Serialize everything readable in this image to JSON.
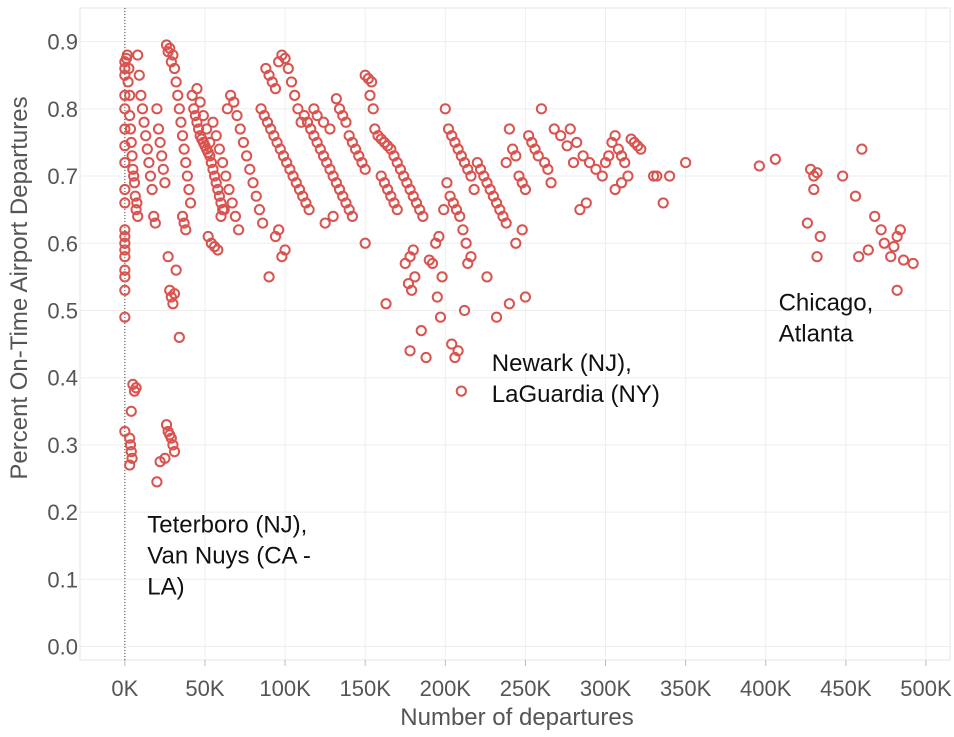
{
  "chart_data": {
    "type": "scatter",
    "xlabel": "Number of departures",
    "ylabel": "Percent On-Time Airport Departures",
    "xlim": [
      -28000,
      515000
    ],
    "ylim": [
      -0.02,
      0.95
    ],
    "x_ticks": [
      0,
      50000,
      100000,
      150000,
      200000,
      250000,
      300000,
      350000,
      400000,
      450000,
      500000
    ],
    "x_tick_labels": [
      "0K",
      "50K",
      "100K",
      "150K",
      "200K",
      "250K",
      "300K",
      "350K",
      "400K",
      "450K",
      "500K"
    ],
    "y_ticks": [
      0.0,
      0.1,
      0.2,
      0.3,
      0.4,
      0.5,
      0.6,
      0.7,
      0.8,
      0.9
    ],
    "y_tick_labels": [
      "0.0",
      "0.1",
      "0.2",
      "0.3",
      "0.4",
      "0.5",
      "0.6",
      "0.7",
      "0.8",
      "0.9"
    ],
    "grid": true,
    "marker_color": "#d9534f",
    "annotations": [
      {
        "lines": [
          "Teterboro (NJ),",
          "Van Nuys (CA -",
          "LA)"
        ],
        "x": 14000,
        "y": 0.17
      },
      {
        "lines": [
          "Newark (NJ),",
          "LaGuardia (NY)"
        ],
        "x": 229000,
        "y": 0.41
      },
      {
        "lines": [
          "Chicago,",
          "Atlanta"
        ],
        "x": 408000,
        "y": 0.5
      }
    ],
    "points": [
      [
        0,
        0.87
      ],
      [
        0,
        0.86
      ],
      [
        0,
        0.85
      ],
      [
        0,
        0.82
      ],
      [
        0,
        0.8
      ],
      [
        0,
        0.77
      ],
      [
        0,
        0.745
      ],
      [
        0,
        0.72
      ],
      [
        0,
        0.68
      ],
      [
        0,
        0.66
      ],
      [
        0,
        0.62
      ],
      [
        0,
        0.61
      ],
      [
        0,
        0.6
      ],
      [
        0,
        0.59
      ],
      [
        0,
        0.58
      ],
      [
        0,
        0.56
      ],
      [
        0,
        0.55
      ],
      [
        0,
        0.53
      ],
      [
        0,
        0.49
      ],
      [
        0,
        0.32
      ],
      [
        1000,
        0.875
      ],
      [
        1500,
        0.88
      ],
      [
        2000,
        0.84
      ],
      [
        2500,
        0.86
      ],
      [
        3000,
        0.82
      ],
      [
        3000,
        0.79
      ],
      [
        3500,
        0.77
      ],
      [
        4000,
        0.75
      ],
      [
        4500,
        0.73
      ],
      [
        5000,
        0.71
      ],
      [
        5500,
        0.7
      ],
      [
        6000,
        0.69
      ],
      [
        6500,
        0.67
      ],
      [
        7000,
        0.65
      ],
      [
        7500,
        0.66
      ],
      [
        8000,
        0.64
      ],
      [
        3000,
        0.31
      ],
      [
        3500,
        0.3
      ],
      [
        4000,
        0.29
      ],
      [
        4500,
        0.28
      ],
      [
        3000,
        0.27
      ],
      [
        4000,
        0.35
      ],
      [
        5000,
        0.39
      ],
      [
        6000,
        0.38
      ],
      [
        7000,
        0.385
      ],
      [
        8000,
        0.88
      ],
      [
        9000,
        0.85
      ],
      [
        10000,
        0.82
      ],
      [
        11000,
        0.8
      ],
      [
        12000,
        0.78
      ],
      [
        13000,
        0.76
      ],
      [
        14000,
        0.74
      ],
      [
        15000,
        0.72
      ],
      [
        16000,
        0.7
      ],
      [
        17000,
        0.68
      ],
      [
        18000,
        0.64
      ],
      [
        19000,
        0.63
      ],
      [
        20000,
        0.8
      ],
      [
        21000,
        0.77
      ],
      [
        22000,
        0.75
      ],
      [
        23000,
        0.73
      ],
      [
        24000,
        0.71
      ],
      [
        25000,
        0.69
      ],
      [
        26000,
        0.895
      ],
      [
        27000,
        0.885
      ],
      [
        28000,
        0.89
      ],
      [
        29000,
        0.87
      ],
      [
        30000,
        0.88
      ],
      [
        31000,
        0.86
      ],
      [
        32000,
        0.84
      ],
      [
        33000,
        0.82
      ],
      [
        34000,
        0.8
      ],
      [
        35000,
        0.78
      ],
      [
        36000,
        0.76
      ],
      [
        37000,
        0.74
      ],
      [
        38000,
        0.72
      ],
      [
        39000,
        0.7
      ],
      [
        40000,
        0.68
      ],
      [
        41000,
        0.66
      ],
      [
        27000,
        0.58
      ],
      [
        28000,
        0.53
      ],
      [
        29000,
        0.52
      ],
      [
        30000,
        0.51
      ],
      [
        31000,
        0.525
      ],
      [
        32000,
        0.56
      ],
      [
        34000,
        0.46
      ],
      [
        26000,
        0.33
      ],
      [
        27000,
        0.32
      ],
      [
        28000,
        0.315
      ],
      [
        29000,
        0.31
      ],
      [
        30000,
        0.3
      ],
      [
        31000,
        0.29
      ],
      [
        25000,
        0.28
      ],
      [
        22000,
        0.275
      ],
      [
        20000,
        0.245
      ],
      [
        36000,
        0.64
      ],
      [
        37000,
        0.63
      ],
      [
        38000,
        0.62
      ],
      [
        42000,
        0.82
      ],
      [
        43000,
        0.8
      ],
      [
        44000,
        0.79
      ],
      [
        45000,
        0.78
      ],
      [
        46000,
        0.77
      ],
      [
        47000,
        0.76
      ],
      [
        48000,
        0.755
      ],
      [
        49000,
        0.75
      ],
      [
        50000,
        0.745
      ],
      [
        51000,
        0.74
      ],
      [
        52000,
        0.735
      ],
      [
        53000,
        0.73
      ],
      [
        54000,
        0.72
      ],
      [
        55000,
        0.71
      ],
      [
        56000,
        0.7
      ],
      [
        57000,
        0.69
      ],
      [
        58000,
        0.68
      ],
      [
        59000,
        0.67
      ],
      [
        60000,
        0.66
      ],
      [
        61000,
        0.65
      ],
      [
        45000,
        0.83
      ],
      [
        47000,
        0.81
      ],
      [
        49000,
        0.79
      ],
      [
        51000,
        0.77
      ],
      [
        53000,
        0.75
      ],
      [
        55000,
        0.78
      ],
      [
        57000,
        0.76
      ],
      [
        59000,
        0.74
      ],
      [
        61000,
        0.72
      ],
      [
        63000,
        0.7
      ],
      [
        65000,
        0.68
      ],
      [
        67000,
        0.66
      ],
      [
        69000,
        0.64
      ],
      [
        71000,
        0.62
      ],
      [
        52000,
        0.61
      ],
      [
        54000,
        0.6
      ],
      [
        56000,
        0.595
      ],
      [
        58000,
        0.59
      ],
      [
        60000,
        0.64
      ],
      [
        62000,
        0.65
      ],
      [
        64000,
        0.8
      ],
      [
        66000,
        0.82
      ],
      [
        68000,
        0.81
      ],
      [
        70000,
        0.79
      ],
      [
        72000,
        0.77
      ],
      [
        74000,
        0.75
      ],
      [
        76000,
        0.73
      ],
      [
        78000,
        0.71
      ],
      [
        80000,
        0.69
      ],
      [
        82000,
        0.67
      ],
      [
        84000,
        0.65
      ],
      [
        86000,
        0.63
      ],
      [
        88000,
        0.86
      ],
      [
        90000,
        0.85
      ],
      [
        92000,
        0.84
      ],
      [
        94000,
        0.83
      ],
      [
        96000,
        0.87
      ],
      [
        98000,
        0.88
      ],
      [
        100000,
        0.875
      ],
      [
        102000,
        0.86
      ],
      [
        104000,
        0.84
      ],
      [
        106000,
        0.82
      ],
      [
        108000,
        0.8
      ],
      [
        110000,
        0.78
      ],
      [
        85000,
        0.8
      ],
      [
        87000,
        0.79
      ],
      [
        89000,
        0.78
      ],
      [
        91000,
        0.77
      ],
      [
        93000,
        0.76
      ],
      [
        95000,
        0.75
      ],
      [
        97000,
        0.74
      ],
      [
        99000,
        0.73
      ],
      [
        101000,
        0.72
      ],
      [
        103000,
        0.71
      ],
      [
        105000,
        0.7
      ],
      [
        107000,
        0.69
      ],
      [
        109000,
        0.68
      ],
      [
        111000,
        0.67
      ],
      [
        113000,
        0.66
      ],
      [
        115000,
        0.65
      ],
      [
        90000,
        0.55
      ],
      [
        98000,
        0.58
      ],
      [
        100000,
        0.59
      ],
      [
        96000,
        0.62
      ],
      [
        94000,
        0.61
      ],
      [
        112000,
        0.79
      ],
      [
        114000,
        0.78
      ],
      [
        116000,
        0.77
      ],
      [
        118000,
        0.76
      ],
      [
        120000,
        0.75
      ],
      [
        122000,
        0.74
      ],
      [
        124000,
        0.73
      ],
      [
        126000,
        0.72
      ],
      [
        128000,
        0.71
      ],
      [
        130000,
        0.7
      ],
      [
        132000,
        0.69
      ],
      [
        134000,
        0.68
      ],
      [
        136000,
        0.67
      ],
      [
        138000,
        0.66
      ],
      [
        140000,
        0.65
      ],
      [
        142000,
        0.64
      ],
      [
        118000,
        0.8
      ],
      [
        120000,
        0.79
      ],
      [
        124000,
        0.78
      ],
      [
        128000,
        0.77
      ],
      [
        132000,
        0.815
      ],
      [
        134000,
        0.8
      ],
      [
        136000,
        0.79
      ],
      [
        138000,
        0.78
      ],
      [
        140000,
        0.76
      ],
      [
        142000,
        0.75
      ],
      [
        144000,
        0.74
      ],
      [
        146000,
        0.73
      ],
      [
        148000,
        0.72
      ],
      [
        150000,
        0.71
      ],
      [
        125000,
        0.63
      ],
      [
        130000,
        0.64
      ],
      [
        150000,
        0.85
      ],
      [
        152000,
        0.845
      ],
      [
        154000,
        0.84
      ],
      [
        153000,
        0.82
      ],
      [
        155000,
        0.8
      ],
      [
        150000,
        0.6
      ],
      [
        156000,
        0.77
      ],
      [
        158000,
        0.76
      ],
      [
        160000,
        0.755
      ],
      [
        162000,
        0.75
      ],
      [
        164000,
        0.745
      ],
      [
        166000,
        0.74
      ],
      [
        168000,
        0.73
      ],
      [
        170000,
        0.72
      ],
      [
        172000,
        0.71
      ],
      [
        174000,
        0.7
      ],
      [
        176000,
        0.69
      ],
      [
        178000,
        0.68
      ],
      [
        180000,
        0.67
      ],
      [
        182000,
        0.66
      ],
      [
        184000,
        0.65
      ],
      [
        186000,
        0.64
      ],
      [
        160000,
        0.7
      ],
      [
        162000,
        0.69
      ],
      [
        164000,
        0.68
      ],
      [
        166000,
        0.67
      ],
      [
        168000,
        0.66
      ],
      [
        170000,
        0.65
      ],
      [
        163000,
        0.51
      ],
      [
        175000,
        0.57
      ],
      [
        178000,
        0.58
      ],
      [
        180000,
        0.59
      ],
      [
        177000,
        0.54
      ],
      [
        179000,
        0.53
      ],
      [
        181000,
        0.55
      ],
      [
        178000,
        0.44
      ],
      [
        185000,
        0.47
      ],
      [
        188000,
        0.43
      ],
      [
        190000,
        0.575
      ],
      [
        192000,
        0.57
      ],
      [
        194000,
        0.6
      ],
      [
        196000,
        0.61
      ],
      [
        198000,
        0.55
      ],
      [
        195000,
        0.52
      ],
      [
        197000,
        0.49
      ],
      [
        199000,
        0.65
      ],
      [
        200000,
        0.8
      ],
      [
        202000,
        0.77
      ],
      [
        204000,
        0.76
      ],
      [
        206000,
        0.75
      ],
      [
        208000,
        0.74
      ],
      [
        210000,
        0.73
      ],
      [
        212000,
        0.72
      ],
      [
        214000,
        0.71
      ],
      [
        216000,
        0.7
      ],
      [
        201000,
        0.69
      ],
      [
        203000,
        0.67
      ],
      [
        205000,
        0.66
      ],
      [
        207000,
        0.65
      ],
      [
        209000,
        0.64
      ],
      [
        211000,
        0.62
      ],
      [
        213000,
        0.6
      ],
      [
        204000,
        0.45
      ],
      [
        206000,
        0.43
      ],
      [
        208000,
        0.44
      ],
      [
        210000,
        0.38
      ],
      [
        212000,
        0.5
      ],
      [
        214000,
        0.57
      ],
      [
        216000,
        0.58
      ],
      [
        218000,
        0.68
      ],
      [
        220000,
        0.72
      ],
      [
        222000,
        0.71
      ],
      [
        224000,
        0.7
      ],
      [
        226000,
        0.69
      ],
      [
        228000,
        0.68
      ],
      [
        230000,
        0.67
      ],
      [
        232000,
        0.66
      ],
      [
        234000,
        0.65
      ],
      [
        236000,
        0.64
      ],
      [
        238000,
        0.72
      ],
      [
        240000,
        0.77
      ],
      [
        242000,
        0.74
      ],
      [
        244000,
        0.73
      ],
      [
        246000,
        0.7
      ],
      [
        248000,
        0.69
      ],
      [
        250000,
        0.68
      ],
      [
        226000,
        0.55
      ],
      [
        232000,
        0.49
      ],
      [
        240000,
        0.51
      ],
      [
        250000,
        0.52
      ],
      [
        244000,
        0.6
      ],
      [
        248000,
        0.62
      ],
      [
        238000,
        0.63
      ],
      [
        252000,
        0.76
      ],
      [
        254000,
        0.75
      ],
      [
        256000,
        0.74
      ],
      [
        258000,
        0.73
      ],
      [
        260000,
        0.8
      ],
      [
        262000,
        0.72
      ],
      [
        264000,
        0.71
      ],
      [
        266000,
        0.69
      ],
      [
        268000,
        0.77
      ],
      [
        272000,
        0.76
      ],
      [
        276000,
        0.745
      ],
      [
        280000,
        0.72
      ],
      [
        284000,
        0.65
      ],
      [
        288000,
        0.66
      ],
      [
        278000,
        0.77
      ],
      [
        282000,
        0.75
      ],
      [
        286000,
        0.73
      ],
      [
        290000,
        0.72
      ],
      [
        294000,
        0.71
      ],
      [
        298000,
        0.7
      ],
      [
        300000,
        0.72
      ],
      [
        302000,
        0.73
      ],
      [
        304000,
        0.75
      ],
      [
        306000,
        0.76
      ],
      [
        308000,
        0.74
      ],
      [
        310000,
        0.73
      ],
      [
        312000,
        0.72
      ],
      [
        314000,
        0.7
      ],
      [
        316000,
        0.755
      ],
      [
        318000,
        0.75
      ],
      [
        320000,
        0.745
      ],
      [
        322000,
        0.74
      ],
      [
        306000,
        0.68
      ],
      [
        310000,
        0.69
      ],
      [
        330000,
        0.7
      ],
      [
        332000,
        0.7
      ],
      [
        336000,
        0.66
      ],
      [
        340000,
        0.7
      ],
      [
        350000,
        0.72
      ],
      [
        396000,
        0.715
      ],
      [
        406000,
        0.725
      ],
      [
        426000,
        0.63
      ],
      [
        428000,
        0.71
      ],
      [
        430000,
        0.7
      ],
      [
        432000,
        0.705
      ],
      [
        430000,
        0.68
      ],
      [
        432000,
        0.58
      ],
      [
        434000,
        0.61
      ],
      [
        448000,
        0.7
      ],
      [
        456000,
        0.67
      ],
      [
        458000,
        0.58
      ],
      [
        460000,
        0.74
      ],
      [
        464000,
        0.59
      ],
      [
        468000,
        0.64
      ],
      [
        472000,
        0.62
      ],
      [
        474000,
        0.6
      ],
      [
        478000,
        0.58
      ],
      [
        480000,
        0.595
      ],
      [
        482000,
        0.61
      ],
      [
        484000,
        0.62
      ],
      [
        486000,
        0.575
      ],
      [
        482000,
        0.53
      ],
      [
        492000,
        0.57
      ]
    ]
  }
}
